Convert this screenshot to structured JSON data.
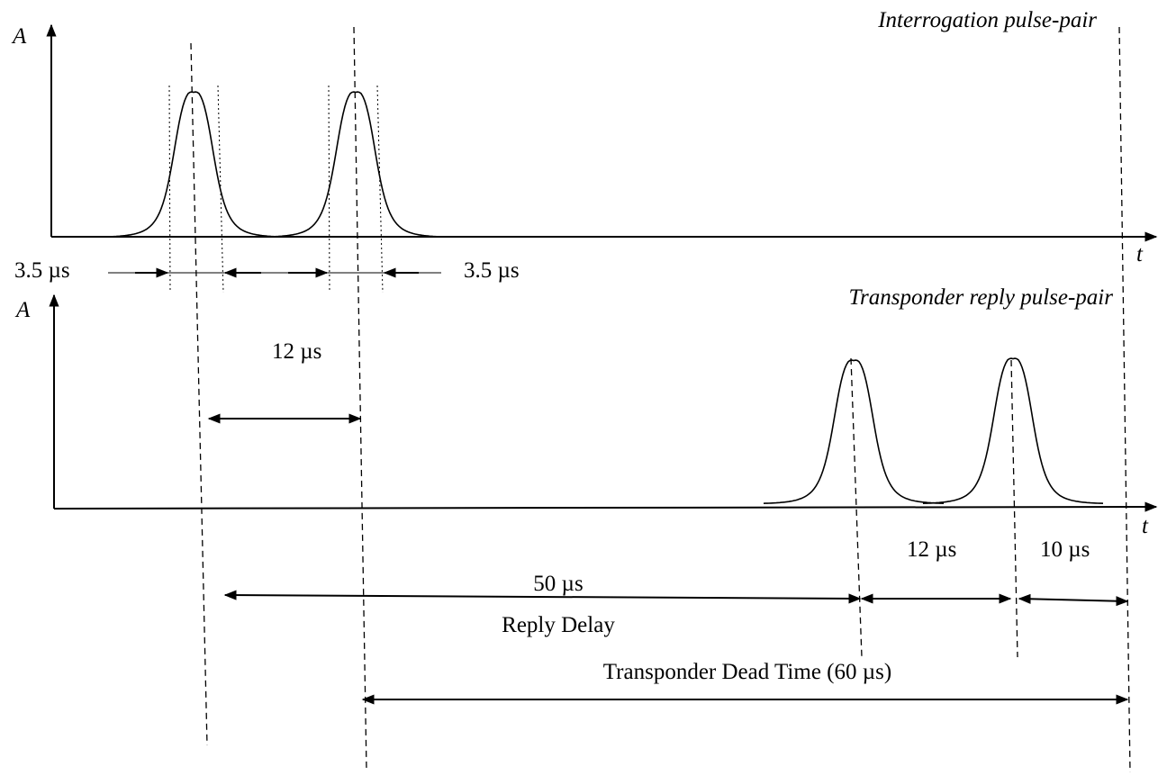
{
  "labels": {
    "axis_a_top": "A",
    "title_top": "Interrogation pulse-pair",
    "axis_t_top": "t",
    "width_left": "3.5 µs",
    "width_right": "3.5 µs",
    "axis_a_bottom": "A",
    "title_bottom": "Transponder reply pulse-pair",
    "spacing_interrogation": "12 µs",
    "axis_t_bottom": "t",
    "spacing_reply": "12 µs",
    "gap_end": "10 µs",
    "delay_value": "50 µs",
    "delay_name": "Reply Delay",
    "dead_time": "Transponder Dead Time (60 µs)"
  }
}
